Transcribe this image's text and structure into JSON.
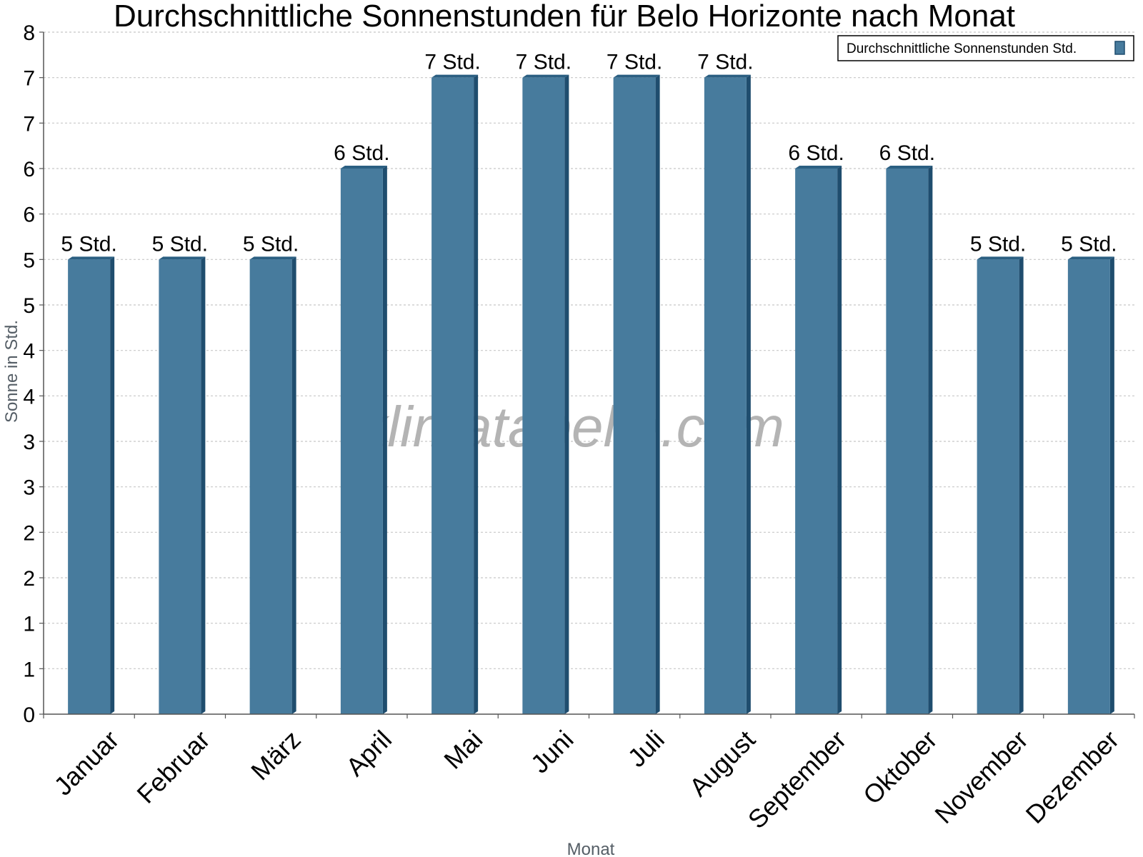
{
  "chart_data": {
    "type": "bar",
    "title": "Durchschnittliche Sonnenstunden für Belo Horizonte nach Monat",
    "xlabel": "Monat",
    "ylabel": "Sonne in Std.",
    "categories": [
      "Januar",
      "Februar",
      "März",
      "April",
      "Mai",
      "Juni",
      "Juli",
      "August",
      "September",
      "Oktober",
      "November",
      "Dezember"
    ],
    "series": [
      {
        "name": "Durchschnittliche Sonnenstunden Std.",
        "values": [
          5,
          5,
          5,
          6,
          7,
          7,
          7,
          7,
          6,
          6,
          5,
          5
        ],
        "data_labels": [
          "5 Std.",
          "5 Std.",
          "5 Std.",
          "6 Std.",
          "7 Std.",
          "7 Std.",
          "7 Std.",
          "7 Std.",
          "6 Std.",
          "6 Std.",
          "5 Std.",
          "5 Std."
        ]
      }
    ],
    "ylim": [
      0,
      7.5
    ],
    "yticks": [
      0,
      0.5,
      1,
      1.5,
      2,
      2.5,
      3,
      3.5,
      4,
      4.5,
      5,
      5.5,
      6,
      6.5,
      7,
      7.5
    ],
    "ytick_labels": [
      "0",
      "1",
      "1",
      "2",
      "2",
      "3",
      "3",
      "4",
      "4",
      "5",
      "5",
      "6",
      "6",
      "7",
      "7",
      "8"
    ],
    "grid": true,
    "legend_position": "top-right",
    "colors": {
      "bar": "#477b9d",
      "bar_side": "#1f4d6e",
      "bar_top": "#2b5f82",
      "grid": "#c8c8c8",
      "axis": "#555555"
    }
  },
  "watermark": "klimatabelle.com"
}
